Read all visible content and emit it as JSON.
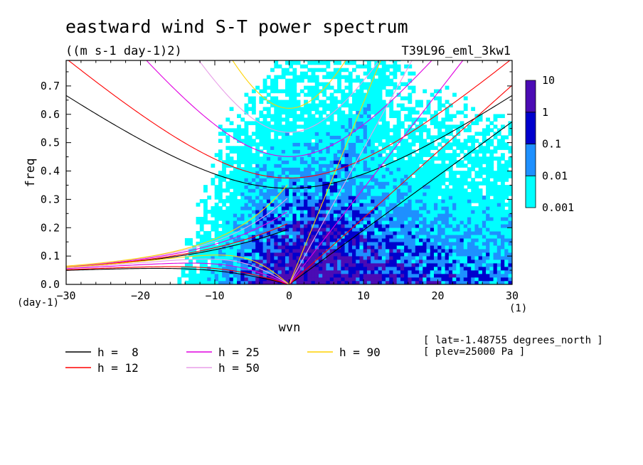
{
  "chart_data": {
    "type": "heatmap",
    "title": "eastward wind S-T power spectrum",
    "subtitle": "((m s-1 day-1)2)",
    "run_label": "T39L96_eml_3kw1",
    "xlabel": "wvn",
    "ylabel": "freq",
    "x_unit": "(1)",
    "y_unit": "(day-1)",
    "xlim": [
      -30,
      30
    ],
    "ylim": [
      0,
      0.79
    ],
    "xticks": [
      -30,
      -20,
      -10,
      0,
      10,
      20,
      30
    ],
    "yticks": [
      0.0,
      0.1,
      0.2,
      0.3,
      0.4,
      0.5,
      0.6,
      0.7
    ],
    "ytick_labels": [
      "0.0",
      "0.1",
      "0.2",
      "0.3",
      "0.4",
      "0.5",
      "0.6",
      "0.7"
    ],
    "colorbar": {
      "levels": [
        0.001,
        0.01,
        0.1,
        1,
        10
      ],
      "labels": [
        "0.001",
        "0.01",
        "0.1",
        "1",
        "10"
      ],
      "colors": [
        "#00ffff",
        "#1e90ff",
        "#0000cd",
        "#4b0bb4"
      ]
    },
    "dispersion_curves": {
      "equivalent_depths": [
        8,
        12,
        25,
        50,
        90
      ],
      "colors": [
        "#000000",
        "#ff0000",
        "#e000e0",
        "#e89ee8",
        "#ffd200"
      ],
      "legend_labels": [
        "h =  8",
        "h = 12",
        "h = 25",
        "h = 50",
        "h = 90"
      ],
      "legend_placement": "bottom"
    },
    "annotations": [
      "[ lat=-1.48755 degrees_north ]",
      "[ plev=25000 Pa ]"
    ],
    "legend_placement": "right"
  }
}
